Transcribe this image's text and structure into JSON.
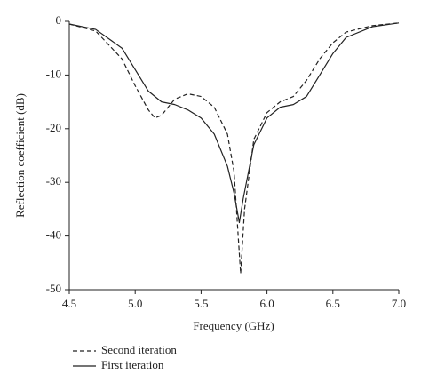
{
  "chart_data": {
    "type": "line",
    "xlabel": "Frequency (GHz)",
    "ylabel": "Reflection coefficient (dB)",
    "xlim": [
      4.5,
      7.0
    ],
    "ylim": [
      -50,
      0
    ],
    "xticks": [
      4.5,
      {
        "value": 5,
        "label": "5.0"
      },
      5.5,
      {
        "value": 6,
        "label": "6.0"
      },
      6.5,
      {
        "value": 7,
        "label": "7.0"
      }
    ],
    "yticks": [
      0,
      -10,
      -20,
      -30,
      -40,
      -50
    ],
    "series": [
      {
        "name": "Second iteration",
        "color": "#222222",
        "dash": true,
        "x": [
          4.5,
          4.7,
          4.9,
          5.0,
          5.1,
          5.15,
          5.2,
          5.3,
          5.4,
          5.5,
          5.6,
          5.7,
          5.75,
          5.8,
          5.83,
          5.9,
          6.0,
          6.1,
          6.2,
          6.3,
          6.4,
          6.5,
          6.6,
          6.8,
          7.0
        ],
        "values": [
          -0.5,
          -1.8,
          -7,
          -12,
          -16.5,
          -18,
          -17.5,
          -14.5,
          -13.5,
          -14,
          -16,
          -21,
          -28,
          -47,
          -35,
          -22,
          -17,
          -15,
          -14,
          -11,
          -7,
          -4,
          -2,
          -0.8,
          -0.3
        ]
      },
      {
        "name": "First iteration",
        "color": "#222222",
        "dash": false,
        "x": [
          4.5,
          4.7,
          4.9,
          5.0,
          5.1,
          5.2,
          5.3,
          5.4,
          5.5,
          5.6,
          5.7,
          5.75,
          5.79,
          5.82,
          5.9,
          6.0,
          6.1,
          6.2,
          6.3,
          6.4,
          6.5,
          6.6,
          6.8,
          7.0
        ],
        "values": [
          -0.5,
          -1.5,
          -5,
          -9,
          -13,
          -15,
          -15.5,
          -16.5,
          -18,
          -21,
          -27,
          -32,
          -37.5,
          -33,
          -23,
          -18,
          -16,
          -15.5,
          -14,
          -10,
          -6,
          -3,
          -1,
          -0.3
        ]
      }
    ]
  }
}
